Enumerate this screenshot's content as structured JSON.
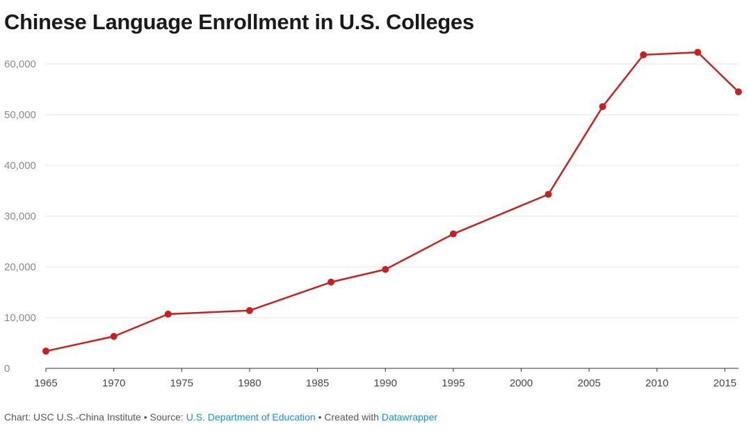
{
  "colors": {
    "series": "#c8201e",
    "link": "#1d8fc7"
  },
  "footer": {
    "chart_credit": "Chart: USC U.S.-China Institute",
    "sep1": " • Source: ",
    "source": "U.S. Department of Education",
    "sep2": " • Created with ",
    "tool": "Datawrapper"
  },
  "chart_data": {
    "type": "line",
    "title": "Chinese Language Enrollment in U.S. Colleges",
    "xlabel": "",
    "ylabel": "",
    "xlim": [
      1965,
      2016
    ],
    "ylim": [
      0,
      60000
    ],
    "x_ticks": [
      {
        "value": 1965,
        "label": "1965"
      },
      {
        "value": 1970,
        "label": "1970"
      },
      {
        "value": 1975,
        "label": "1975"
      },
      {
        "value": 1980,
        "label": "1980"
      },
      {
        "value": 1985,
        "label": "1985"
      },
      {
        "value": 1990,
        "label": "1990"
      },
      {
        "value": 1995,
        "label": "1995"
      },
      {
        "value": 2000,
        "label": "2000"
      },
      {
        "value": 2005,
        "label": "2005"
      },
      {
        "value": 2010,
        "label": "2010"
      },
      {
        "value": 2015,
        "label": "2015"
      }
    ],
    "y_ticks": [
      {
        "value": 0,
        "label": "0"
      },
      {
        "value": 10000,
        "label": "10,000"
      },
      {
        "value": 20000,
        "label": "20,000"
      },
      {
        "value": 30000,
        "label": "30,000"
      },
      {
        "value": 40000,
        "label": "40,000"
      },
      {
        "value": 50000,
        "label": "50,000"
      },
      {
        "value": 60000,
        "label": "60,000"
      }
    ],
    "grid": true,
    "legend": "none",
    "series": [
      {
        "x": [
          1965,
          1970,
          1974,
          1980,
          1986,
          1990,
          1995,
          2002,
          2006,
          2009,
          2013,
          2016
        ],
        "values": [
          3400,
          6300,
          10700,
          11400,
          17000,
          19500,
          26500,
          34300,
          51600,
          61800,
          62300,
          54500
        ]
      }
    ]
  }
}
